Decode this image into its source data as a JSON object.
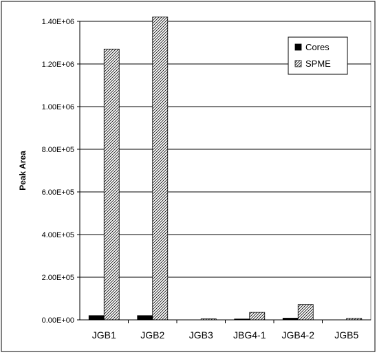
{
  "chart_data": {
    "type": "bar",
    "categories": [
      "JGB1",
      "JGB2",
      "JGB3",
      "JBG4-1",
      "JGB4-2",
      "JGB5"
    ],
    "series": [
      {
        "name": "Cores",
        "values": [
          20000,
          20000,
          0,
          4000,
          8000,
          0
        ],
        "color": "#000000",
        "pattern": "solid"
      },
      {
        "name": "SPME",
        "values": [
          1270000,
          1420000,
          5000,
          35000,
          72000,
          7000
        ],
        "color": "#ffffff",
        "pattern": "diagonal-hatch"
      }
    ],
    "ylabel": "Peak Area",
    "ylim": [
      0,
      1400000
    ],
    "yticks": [
      "0.00E+00",
      "2.00E+05",
      "4.00E+05",
      "6.00E+05",
      "8.00E+05",
      "1.00E+06",
      "1.20E+06",
      "1.40E+06"
    ],
    "grid": true,
    "legend": "top-right"
  }
}
